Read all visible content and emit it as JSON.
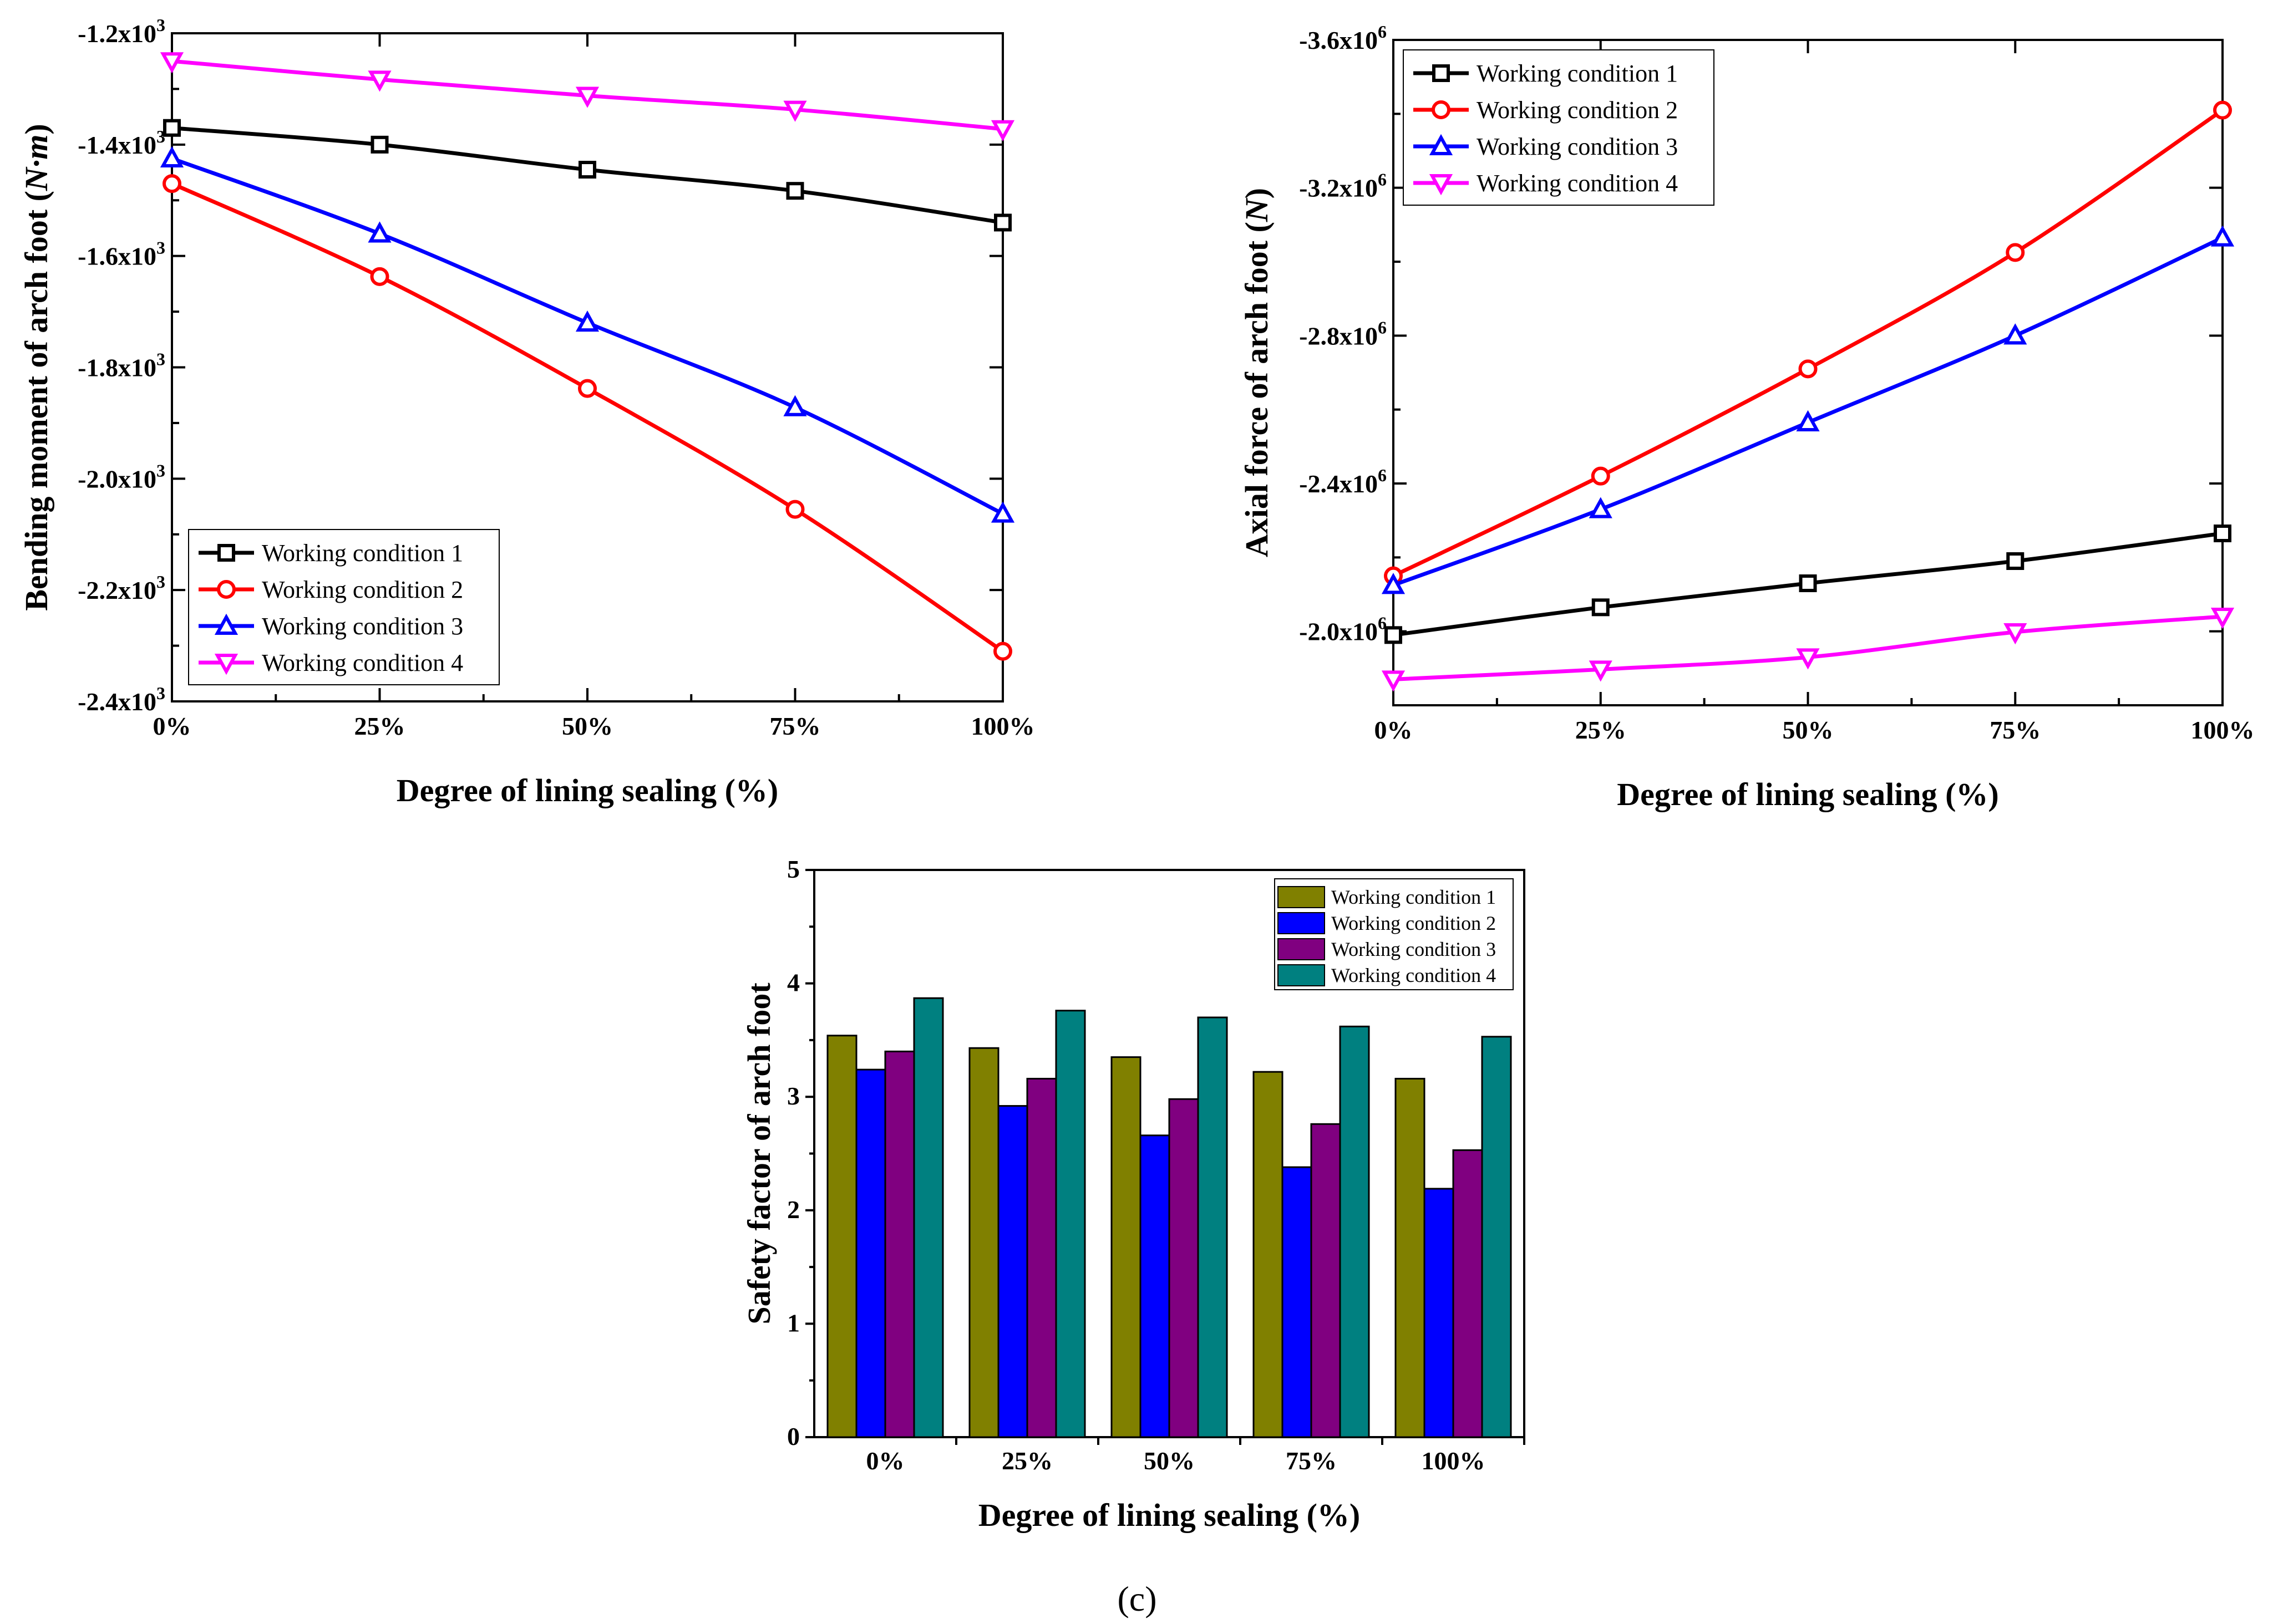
{
  "caption": "(c)",
  "chart_data": [
    {
      "id": "a",
      "type": "line",
      "title": "",
      "xlabel": "Degree of lining sealing (%)",
      "ylabel": "Bending moment of arch foot (N·m)",
      "ylabel_main": "Bending moment of arch foot (",
      "ylabel_unit": "N·m",
      "ylabel_close": ")",
      "x": [
        0,
        25,
        50,
        75,
        100
      ],
      "x_tick_labels": [
        "0%",
        "25%",
        "50%",
        "75%",
        "100%"
      ],
      "ylim": [
        -2400,
        -1200
      ],
      "y_ticks": [
        -1200,
        -1400,
        -1600,
        -1800,
        -2000,
        -2200,
        -2400
      ],
      "y_tick_labels": [
        {
          "base": "-1.2x10",
          "exp": "3"
        },
        {
          "base": "-1.4x10",
          "exp": "3"
        },
        {
          "base": "-1.6x10",
          "exp": "3"
        },
        {
          "base": "-1.8x10",
          "exp": "3"
        },
        {
          "base": "-2.0x10",
          "exp": "3"
        },
        {
          "base": "-2.2x10",
          "exp": "3"
        },
        {
          "base": "-2.4x10",
          "exp": "3"
        }
      ],
      "legend_position": "bottom-left",
      "series": [
        {
          "name": "Working condition 1",
          "color": "#000000",
          "marker": "square",
          "values": [
            -1370,
            -1400,
            -1445,
            -1483,
            -1540
          ]
        },
        {
          "name": "Working condition 2",
          "color": "#ff0000",
          "marker": "circle",
          "values": [
            -1470,
            -1637,
            -1838,
            -2055,
            -2310
          ]
        },
        {
          "name": "Working condition 3",
          "color": "#0000ff",
          "marker": "triangle-up",
          "values": [
            -1425,
            -1560,
            -1720,
            -1872,
            -2063
          ]
        },
        {
          "name": "Working condition 4",
          "color": "#ff00ff",
          "marker": "triangle-down",
          "values": [
            -1250,
            -1283,
            -1312,
            -1337,
            -1372
          ]
        }
      ]
    },
    {
      "id": "b",
      "type": "line",
      "title": "",
      "xlabel": "Degree of lining sealing (%)",
      "ylabel": "Axial force of arch foot (N)",
      "ylabel_main": "Axial force of arch foot (",
      "ylabel_unit": "N",
      "ylabel_close": ")",
      "x": [
        0,
        25,
        50,
        75,
        100
      ],
      "x_tick_labels": [
        "0%",
        "25%",
        "50%",
        "75%",
        "100%"
      ],
      "ylim": [
        -1800000,
        -3600000
      ],
      "y_ticks": [
        -3600000,
        -3200000,
        -2800000,
        -2400000,
        -2000000
      ],
      "y_tick_labels": [
        {
          "base": "-3.6x10",
          "exp": "6"
        },
        {
          "base": "-3.2x10",
          "exp": "6"
        },
        {
          "base": "-2.8x10",
          "exp": "6"
        },
        {
          "base": "-2.4x10",
          "exp": "6"
        },
        {
          "base": "-2.0x10",
          "exp": "6"
        }
      ],
      "legend_position": "top-left",
      "series": [
        {
          "name": "Working condition 1",
          "color": "#000000",
          "marker": "square",
          "values": [
            -1990000,
            -2065000,
            -2130000,
            -2190000,
            -2265000
          ]
        },
        {
          "name": "Working condition 2",
          "color": "#ff0000",
          "marker": "circle",
          "values": [
            -2150000,
            -2420000,
            -2710000,
            -3025000,
            -3410000
          ]
        },
        {
          "name": "Working condition 3",
          "color": "#0000ff",
          "marker": "triangle-up",
          "values": [
            -2125000,
            -2330000,
            -2565000,
            -2800000,
            -3065000
          ]
        },
        {
          "name": "Working condition 4",
          "color": "#ff00ff",
          "marker": "triangle-down",
          "values": [
            -1870000,
            -1897000,
            -1930000,
            -1998000,
            -2040000
          ]
        }
      ]
    },
    {
      "id": "c",
      "type": "bar",
      "title": "",
      "xlabel": "Degree of lining sealing (%)",
      "ylabel": "Safety factor of arch foot",
      "categories": [
        "0%",
        "25%",
        "50%",
        "75%",
        "100%"
      ],
      "ylim": [
        0,
        5
      ],
      "y_ticks": [
        0,
        1,
        2,
        3,
        4,
        5
      ],
      "y_tick_labels": [
        "0",
        "1",
        "2",
        "3",
        "4",
        "5"
      ],
      "legend_position": "top-right",
      "series": [
        {
          "name": "Working condition 1",
          "color": "#808000",
          "values": [
            3.54,
            3.43,
            3.35,
            3.22,
            3.16
          ]
        },
        {
          "name": "Working condition 2",
          "color": "#0000ff",
          "values": [
            3.24,
            2.92,
            2.66,
            2.38,
            2.19
          ]
        },
        {
          "name": "Working condition 3",
          "color": "#800080",
          "values": [
            3.4,
            3.16,
            2.98,
            2.76,
            2.53
          ]
        },
        {
          "name": "Working condition 4",
          "color": "#008080",
          "values": [
            3.87,
            3.76,
            3.7,
            3.62,
            3.53
          ]
        }
      ]
    }
  ]
}
